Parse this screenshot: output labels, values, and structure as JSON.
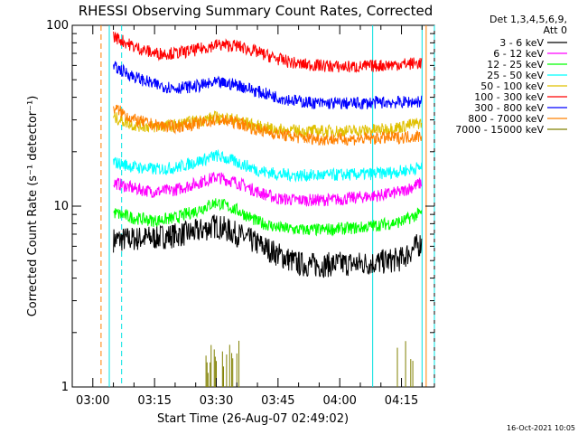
{
  "chart_data": {
    "type": "line",
    "title": "RHESSI Observing Summary Count Rates, Corrected",
    "xlabel": "Start Time (26-Aug-07 02:49:02)",
    "ylabel": "Corrected Count Rate (s⁻¹ detector⁻¹)",
    "yscale": "log",
    "ylim": [
      1,
      100
    ],
    "xlim": [
      "02:55",
      "04:23"
    ],
    "y_tick_labels": [
      "1",
      "10",
      "100"
    ],
    "x_tick_labels": [
      "03:00",
      "03:15",
      "03:30",
      "03:45",
      "04:00",
      "04:15"
    ],
    "grid": false,
    "legend": {
      "placement": "right",
      "header": [
        "Det 1,3,4,5,6,9,",
        "Att 0"
      ]
    },
    "vertical_markers": [
      {
        "time": "03:02",
        "color": "#ff8000",
        "style": "dashed"
      },
      {
        "time": "03:04",
        "color": "#00e0e0",
        "style": "solid"
      },
      {
        "time": "03:07",
        "color": "#00e0e0",
        "style": "dashed"
      },
      {
        "time": "04:08",
        "color": "#00e0e0",
        "style": "solid"
      },
      {
        "time": "04:20",
        "color": "#00e0e0",
        "style": "solid"
      },
      {
        "time": "04:21",
        "color": "#ff8000",
        "style": "solid"
      },
      {
        "time": "04:23",
        "color": "#00e0e0",
        "style": "dashed"
      }
    ],
    "footer": "16-Oct-2021 10:05",
    "series": [
      {
        "name": "3 - 6 keV",
        "color": "#000000",
        "x": [
          "03:05",
          "03:10",
          "03:15",
          "03:20",
          "03:25",
          "03:30",
          "03:35",
          "03:40",
          "03:45",
          "03:50",
          "03:55",
          "04:00",
          "04:05",
          "04:10",
          "04:15",
          "04:20"
        ],
        "values": [
          6.5,
          6.6,
          6.7,
          6.9,
          7.2,
          7.8,
          7.0,
          6.2,
          5.4,
          4.8,
          4.7,
          4.8,
          4.8,
          4.9,
          5.1,
          6.3
        ]
      },
      {
        "name": "6 - 12 keV",
        "color": "#ff00ff",
        "x": [
          "03:05",
          "03:10",
          "03:15",
          "03:20",
          "03:25",
          "03:30",
          "03:35",
          "03:40",
          "03:45",
          "03:50",
          "03:55",
          "04:00",
          "04:05",
          "04:10",
          "04:15",
          "04:20"
        ],
        "values": [
          13.5,
          12.5,
          12.0,
          12.3,
          13.3,
          14.5,
          13.5,
          12.0,
          11.0,
          10.8,
          10.8,
          10.9,
          11.2,
          11.5,
          12.0,
          13.5
        ]
      },
      {
        "name": "12 - 25 keV",
        "color": "#00ff00",
        "x": [
          "03:05",
          "03:10",
          "03:15",
          "03:20",
          "03:25",
          "03:30",
          "03:35",
          "03:40",
          "03:45",
          "03:50",
          "03:55",
          "04:00",
          "04:05",
          "04:10",
          "04:15",
          "04:20"
        ],
        "values": [
          9.2,
          8.6,
          8.3,
          8.6,
          9.4,
          10.5,
          9.5,
          8.2,
          7.6,
          7.4,
          7.4,
          7.5,
          7.6,
          7.9,
          8.2,
          9.2
        ]
      },
      {
        "name": "25 - 50 keV",
        "color": "#00ffff",
        "x": [
          "03:05",
          "03:10",
          "03:15",
          "03:20",
          "03:25",
          "03:30",
          "03:35",
          "03:40",
          "03:45",
          "03:50",
          "03:55",
          "04:00",
          "04:05",
          "04:10",
          "04:15",
          "04:20"
        ],
        "values": [
          17.5,
          16.5,
          16.0,
          16.3,
          17.5,
          19.0,
          17.5,
          15.8,
          15.0,
          14.8,
          14.8,
          14.9,
          15.0,
          15.2,
          15.6,
          16.5
        ]
      },
      {
        "name": "50 - 100 keV",
        "color": "#e0c000",
        "x": [
          "03:05",
          "03:10",
          "03:15",
          "03:20",
          "03:25",
          "03:30",
          "03:35",
          "03:40",
          "03:45",
          "03:50",
          "03:55",
          "04:00",
          "04:05",
          "04:10",
          "04:15",
          "04:20"
        ],
        "values": [
          31,
          28,
          27.5,
          28,
          29.5,
          31,
          30,
          27.5,
          26.5,
          26,
          26,
          26,
          26.2,
          26.5,
          27.5,
          29
        ]
      },
      {
        "name": "100 - 300 keV",
        "color": "#ff0000",
        "x": [
          "03:05",
          "03:10",
          "03:15",
          "03:20",
          "03:25",
          "03:30",
          "03:35",
          "03:40",
          "03:45",
          "03:50",
          "03:55",
          "04:00",
          "04:05",
          "04:10",
          "04:15",
          "04:20"
        ],
        "values": [
          87,
          76,
          70,
          70,
          73,
          78,
          77,
          71,
          65,
          61,
          60,
          59,
          59,
          60,
          61,
          62
        ]
      },
      {
        "name": "300 - 800 keV",
        "color": "#0000ff",
        "x": [
          "03:05",
          "03:10",
          "03:15",
          "03:20",
          "03:25",
          "03:30",
          "03:35",
          "03:40",
          "03:45",
          "03:50",
          "03:55",
          "04:00",
          "04:05",
          "04:10",
          "04:15",
          "04:20"
        ],
        "values": [
          59,
          52,
          47,
          45,
          46,
          48,
          47,
          43,
          40,
          38,
          37,
          37,
          37,
          37.5,
          37.5,
          38
        ]
      },
      {
        "name": "800 - 7000 keV",
        "color": "#ff8000",
        "x": [
          "03:05",
          "03:10",
          "03:15",
          "03:20",
          "03:25",
          "03:30",
          "03:35",
          "03:40",
          "03:45",
          "03:50",
          "03:55",
          "04:00",
          "04:05",
          "04:10",
          "04:15",
          "04:20"
        ],
        "values": [
          35,
          30,
          28,
          27.5,
          28.5,
          30,
          29,
          26.5,
          25,
          24,
          23.5,
          23.5,
          23.5,
          23.8,
          24,
          24.5
        ]
      },
      {
        "name": "7000 - 15000 keV",
        "color": "#808000",
        "x": [
          "03:27",
          "03:28",
          "03:29",
          "03:30",
          "03:31",
          "03:32",
          "03:33",
          "03:34",
          "03:35",
          "04:14",
          "04:15",
          "04:16",
          "04:17",
          "04:18"
        ],
        "values": [
          1.9,
          1.3,
          1.9,
          1.6,
          1.9,
          1.4,
          1.9,
          1.5,
          1.9,
          1.9,
          1.5,
          1.9,
          1.3,
          1.9
        ]
      }
    ]
  }
}
